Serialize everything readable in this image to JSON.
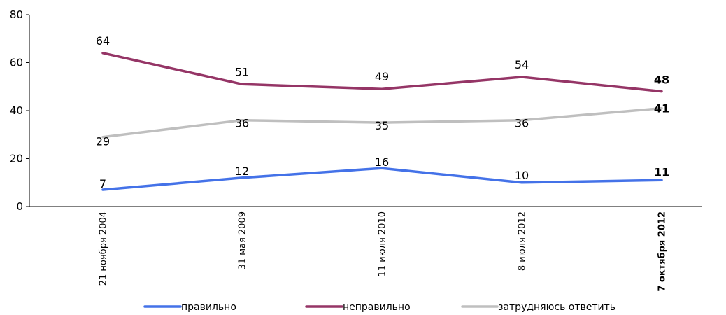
{
  "chart_data": {
    "type": "line",
    "categories": [
      "21 ноября 2004",
      "31 мая 2009",
      "11 июля 2010",
      "8 июля 2012",
      "7 октября 2012"
    ],
    "ylim": [
      0,
      80
    ],
    "yticks": [
      0,
      20,
      40,
      60,
      80
    ],
    "grid": false,
    "legend_position": "bottom",
    "bold_last_category": true,
    "series": [
      {
        "name": "правильно",
        "color": "#4472e8",
        "values": [
          7,
          12,
          16,
          10,
          11
        ]
      },
      {
        "name": "неправильно",
        "color": "#953566",
        "values": [
          64,
          51,
          49,
          54,
          48
        ]
      },
      {
        "name": "затрудняюсь ответить",
        "color": "#bfbfbf",
        "values": [
          29,
          36,
          35,
          36,
          41
        ]
      }
    ]
  }
}
